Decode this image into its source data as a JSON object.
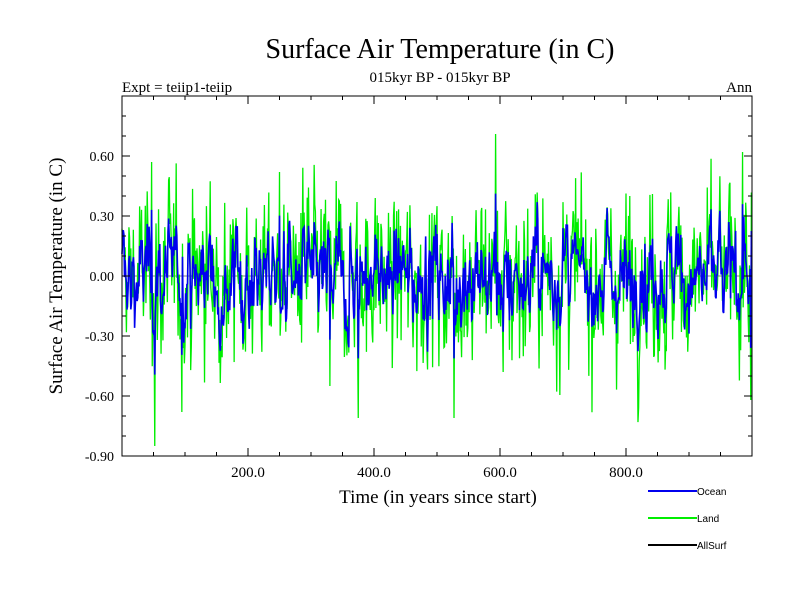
{
  "chart_data": {
    "type": "line",
    "title": "Surface Air Temperature (in C)",
    "subtitle": "015kyr BP - 015kyr BP",
    "left_label": "Expt = teiip1-teiip",
    "right_label": "Ann",
    "xlabel": "Time (in years since start)",
    "ylabel": "Surface Air Temperature (in C)",
    "xlim": [
      0,
      1000
    ],
    "ylim": [
      -0.9,
      0.9
    ],
    "x_ticks": [
      200,
      400,
      600,
      800
    ],
    "x_tick_labels": [
      "200.0",
      "400.0",
      "600.0",
      "800.0"
    ],
    "y_ticks": [
      -0.9,
      -0.6,
      -0.3,
      0.0,
      0.3,
      0.6
    ],
    "y_tick_labels": [
      "-0.90",
      "-0.60",
      "-0.30",
      "0.00",
      "0.30",
      "0.60"
    ],
    "grid": false,
    "legend_position": "bottom-right",
    "series": [
      {
        "name": "Ocean",
        "color": "#0000ee"
      },
      {
        "name": "Land",
        "color": "#00ee00"
      },
      {
        "name": "AllSurf",
        "color": "#000000"
      }
    ],
    "land_notable_points": [
      {
        "x": 47,
        "y": 0.57
      },
      {
        "x": 52,
        "y": -0.85
      },
      {
        "x": 95,
        "y": -0.68
      },
      {
        "x": 250,
        "y": 0.52
      },
      {
        "x": 330,
        "y": -0.55
      },
      {
        "x": 375,
        "y": -0.71
      },
      {
        "x": 527,
        "y": -0.71
      },
      {
        "x": 593,
        "y": 0.71
      },
      {
        "x": 605,
        "y": -0.48
      },
      {
        "x": 985,
        "y": 0.62
      },
      {
        "x": 998,
        "y": -0.62
      }
    ],
    "ocean_range": [
      -0.55,
      0.42
    ]
  }
}
